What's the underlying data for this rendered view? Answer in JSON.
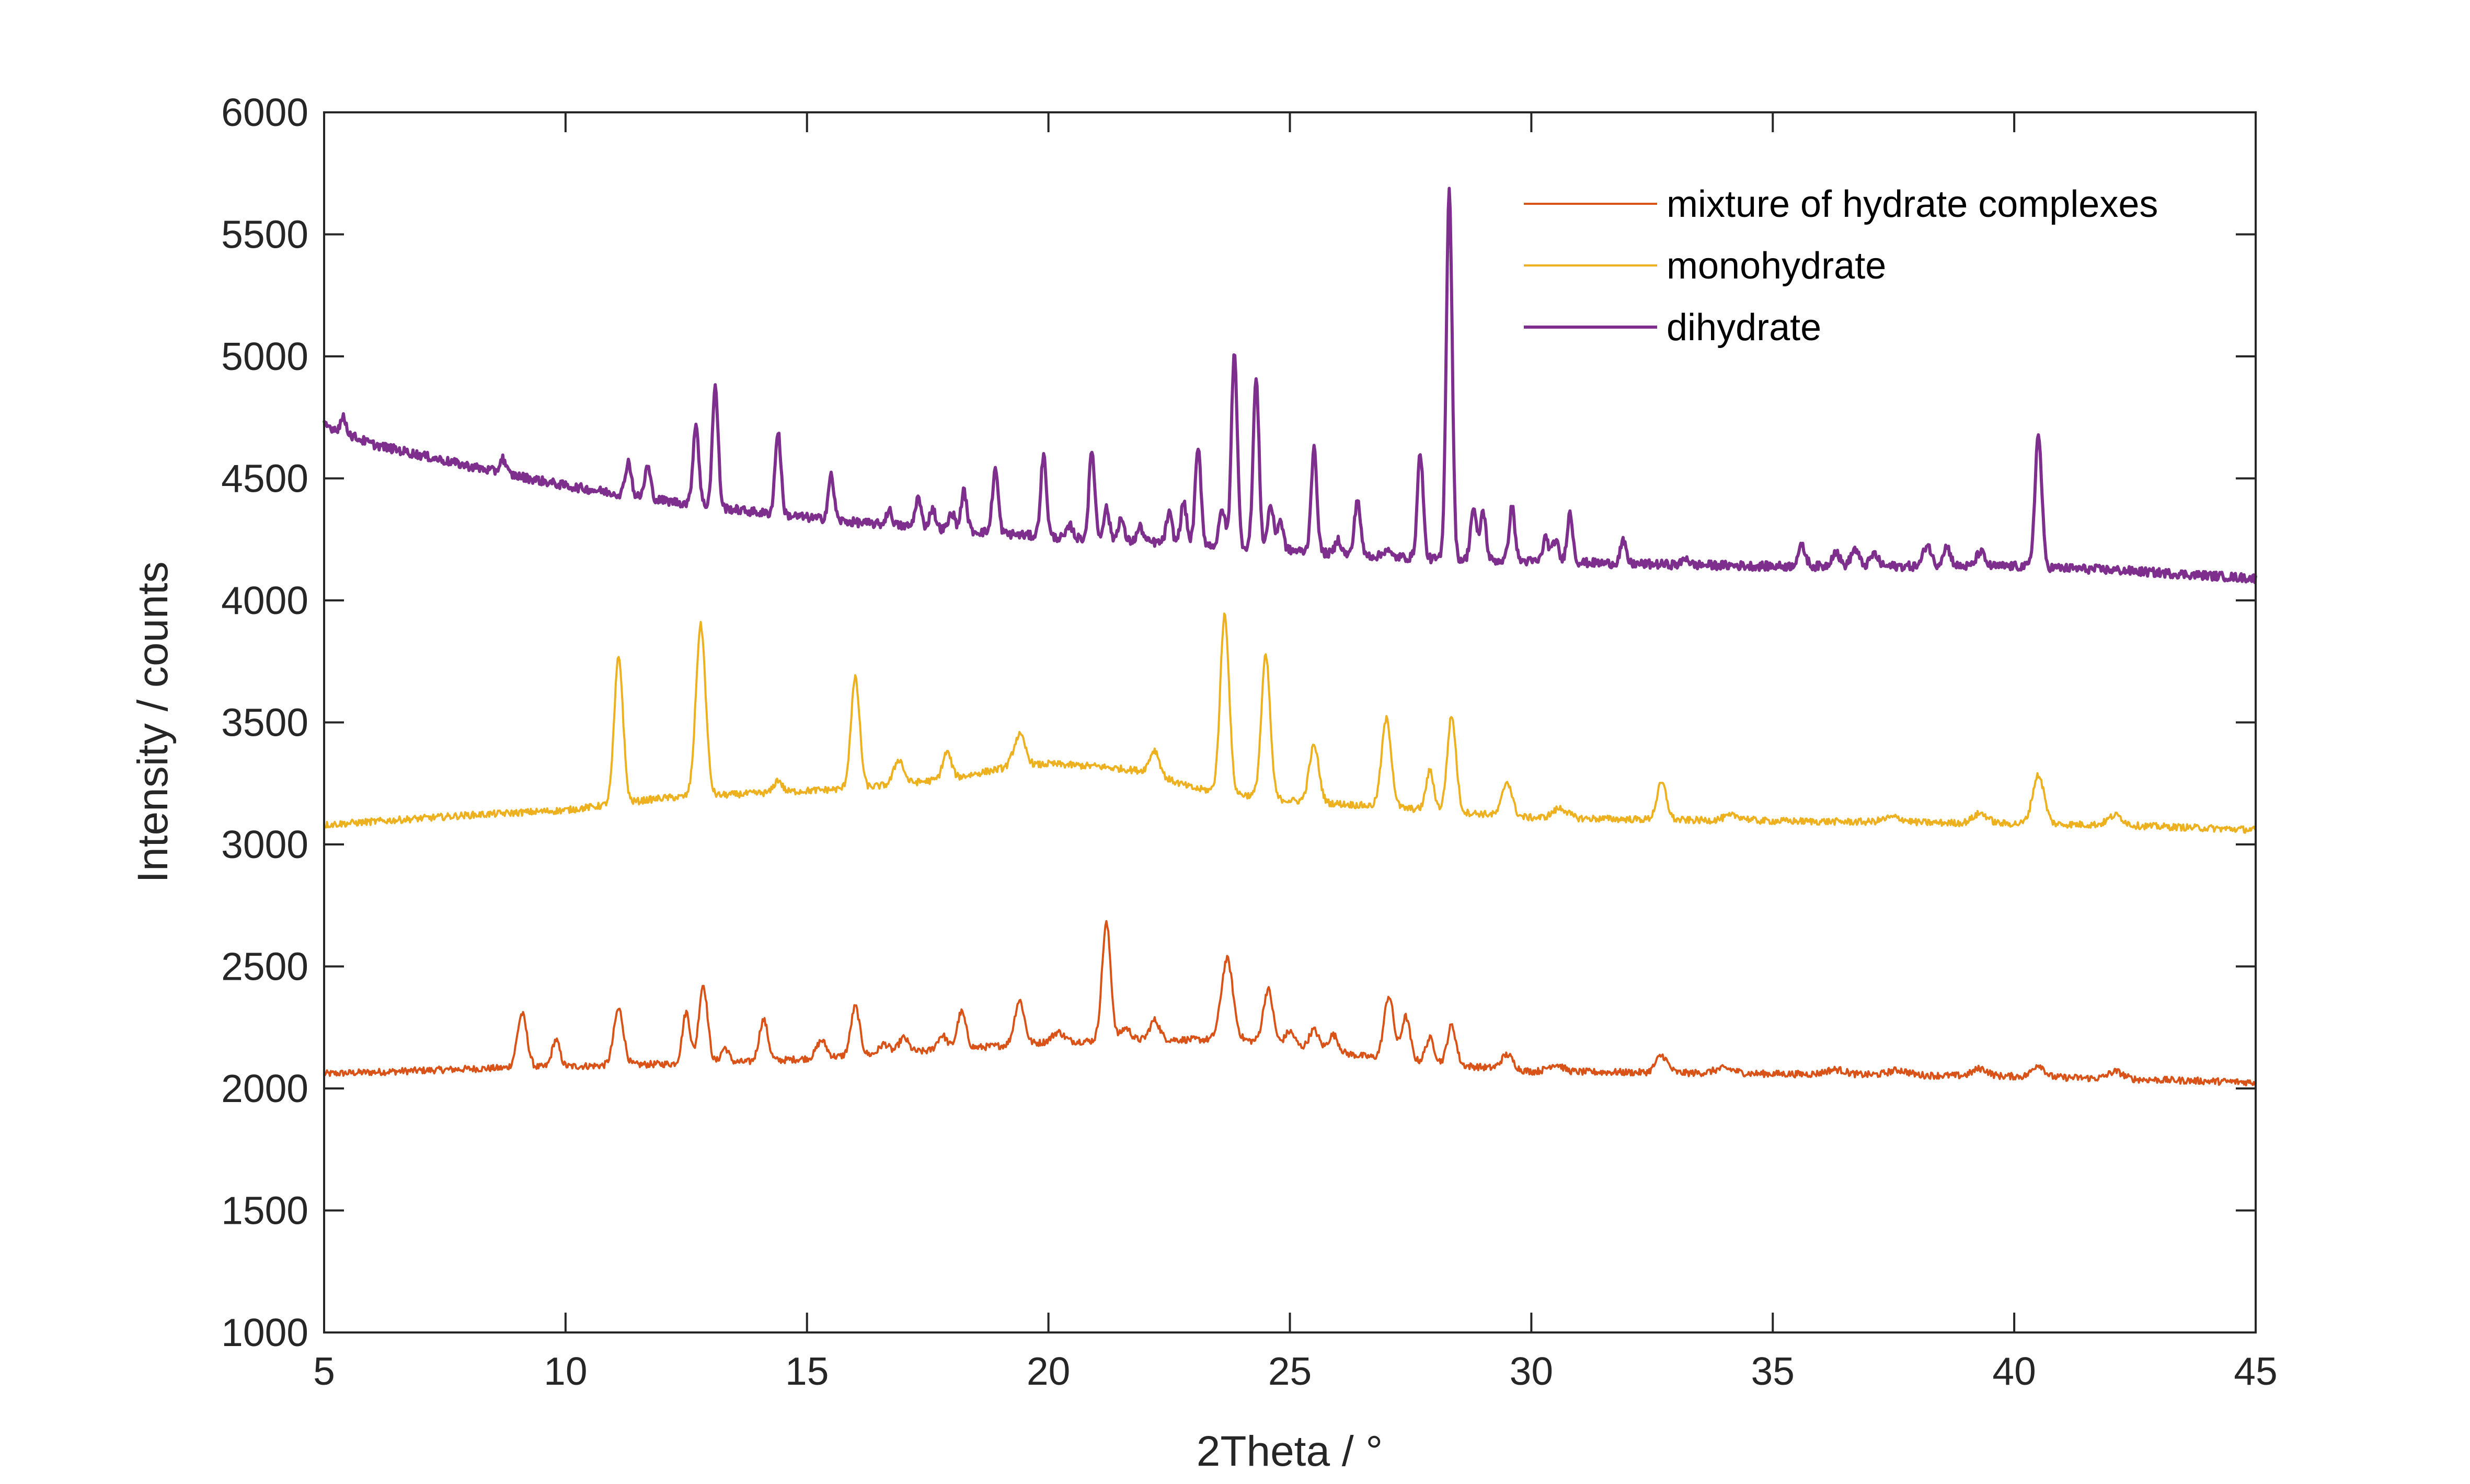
{
  "chart_data": {
    "type": "line",
    "title": "",
    "xlabel": "2Theta / °",
    "ylabel": "Intensity / counts",
    "xlim": [
      5,
      45
    ],
    "ylim": [
      1000,
      6000
    ],
    "xticks": [
      5,
      10,
      15,
      20,
      25,
      30,
      35,
      40,
      45
    ],
    "yticks": [
      1000,
      1500,
      2000,
      2500,
      3000,
      3500,
      4000,
      4500,
      5000,
      5500,
      6000
    ],
    "grid": false,
    "legend_position": "top-right",
    "series": [
      {
        "name": "mixture of hydrate complexes",
        "color": "#D95319",
        "baseline": [
          [
            5,
            2060
          ],
          [
            8,
            2080
          ],
          [
            10,
            2090
          ],
          [
            14,
            2110
          ],
          [
            18,
            2160
          ],
          [
            20,
            2190
          ],
          [
            22,
            2200
          ],
          [
            24,
            2200
          ],
          [
            27,
            2120
          ],
          [
            30,
            2070
          ],
          [
            35,
            2060
          ],
          [
            40,
            2050
          ],
          [
            45,
            2025
          ]
        ],
        "peaks": [
          [
            9.1,
            220,
            0.1
          ],
          [
            9.8,
            110,
            0.08
          ],
          [
            11.1,
            230,
            0.1
          ],
          [
            12.5,
            210,
            0.08
          ],
          [
            12.85,
            320,
            0.09
          ],
          [
            13.3,
            60,
            0.08
          ],
          [
            14.1,
            170,
            0.09
          ],
          [
            15.3,
            70,
            0.1
          ],
          [
            16.0,
            200,
            0.09
          ],
          [
            16.6,
            40,
            0.1
          ],
          [
            17.0,
            60,
            0.1
          ],
          [
            17.8,
            60,
            0.1
          ],
          [
            18.2,
            150,
            0.09
          ],
          [
            19.4,
            180,
            0.1
          ],
          [
            20.2,
            40,
            0.12
          ],
          [
            21.2,
            480,
            0.09
          ],
          [
            21.6,
            50,
            0.1
          ],
          [
            22.2,
            80,
            0.1
          ],
          [
            23.7,
            330,
            0.12
          ],
          [
            24.55,
            220,
            0.1
          ],
          [
            25.0,
            60,
            0.1
          ],
          [
            25.5,
            80,
            0.1
          ],
          [
            25.9,
            70,
            0.1
          ],
          [
            27.05,
            260,
            0.1
          ],
          [
            27.4,
            180,
            0.09
          ],
          [
            27.9,
            100,
            0.09
          ],
          [
            28.35,
            160,
            0.09
          ],
          [
            29.5,
            60,
            0.12
          ],
          [
            30.5,
            30,
            0.15
          ],
          [
            32.7,
            70,
            0.12
          ],
          [
            34.0,
            20,
            0.2
          ],
          [
            36.3,
            20,
            0.2
          ],
          [
            37.6,
            20,
            0.2
          ],
          [
            39.3,
            30,
            0.15
          ],
          [
            40.5,
            50,
            0.12
          ],
          [
            42.1,
            30,
            0.15
          ]
        ]
      },
      {
        "name": "monohydrate",
        "color": "#EDB120",
        "baseline": [
          [
            5,
            3080
          ],
          [
            8,
            3120
          ],
          [
            10,
            3140
          ],
          [
            12,
            3190
          ],
          [
            14,
            3210
          ],
          [
            16,
            3230
          ],
          [
            18,
            3270
          ],
          [
            19,
            3310
          ],
          [
            20,
            3330
          ],
          [
            21,
            3320
          ],
          [
            22,
            3300
          ],
          [
            23,
            3230
          ],
          [
            25,
            3180
          ],
          [
            28,
            3140
          ],
          [
            30,
            3110
          ],
          [
            33,
            3100
          ],
          [
            38,
            3090
          ],
          [
            42,
            3080
          ],
          [
            45,
            3060
          ]
        ],
        "peaks": [
          [
            11.1,
            600,
            0.09
          ],
          [
            12.8,
            700,
            0.1
          ],
          [
            14.4,
            50,
            0.08
          ],
          [
            16.0,
            450,
            0.09
          ],
          [
            16.9,
            100,
            0.1
          ],
          [
            17.9,
            110,
            0.09
          ],
          [
            19.4,
            130,
            0.12
          ],
          [
            22.2,
            100,
            0.1
          ],
          [
            23.65,
            730,
            0.09
          ],
          [
            24.5,
            580,
            0.09
          ],
          [
            25.5,
            230,
            0.1
          ],
          [
            27.0,
            360,
            0.1
          ],
          [
            27.9,
            160,
            0.08
          ],
          [
            28.35,
            390,
            0.09
          ],
          [
            29.5,
            140,
            0.1
          ],
          [
            30.6,
            40,
            0.15
          ],
          [
            32.7,
            150,
            0.1
          ],
          [
            34.2,
            20,
            0.2
          ],
          [
            37.5,
            20,
            0.2
          ],
          [
            39.3,
            40,
            0.15
          ],
          [
            40.5,
            200,
            0.12
          ],
          [
            42.1,
            40,
            0.15
          ]
        ]
      },
      {
        "name": "dihydrate",
        "color": "#7E2F8E",
        "baseline": [
          [
            5,
            4720
          ],
          [
            6,
            4640
          ],
          [
            8,
            4550
          ],
          [
            10,
            4470
          ],
          [
            12,
            4410
          ],
          [
            14,
            4360
          ],
          [
            16,
            4320
          ],
          [
            18,
            4290
          ],
          [
            20,
            4260
          ],
          [
            22,
            4240
          ],
          [
            24,
            4220
          ],
          [
            26,
            4190
          ],
          [
            28,
            4170
          ],
          [
            30,
            4160
          ],
          [
            32,
            4150
          ],
          [
            35,
            4140
          ],
          [
            38,
            4140
          ],
          [
            40,
            4140
          ],
          [
            42,
            4125
          ],
          [
            45,
            4090
          ]
        ],
        "peaks": [
          [
            5.4,
            60,
            0.06
          ],
          [
            8.7,
            60,
            0.06
          ],
          [
            11.3,
            140,
            0.06
          ],
          [
            11.7,
            130,
            0.06
          ],
          [
            12.7,
            330,
            0.06
          ],
          [
            13.1,
            490,
            0.06
          ],
          [
            14.4,
            340,
            0.06
          ],
          [
            15.5,
            180,
            0.06
          ],
          [
            16.7,
            60,
            0.06
          ],
          [
            17.3,
            120,
            0.06
          ],
          [
            17.6,
            80,
            0.06
          ],
          [
            18.0,
            70,
            0.06
          ],
          [
            18.25,
            160,
            0.06
          ],
          [
            18.9,
            260,
            0.06
          ],
          [
            19.9,
            330,
            0.06
          ],
          [
            20.45,
            50,
            0.06
          ],
          [
            20.9,
            360,
            0.06
          ],
          [
            21.2,
            130,
            0.06
          ],
          [
            21.5,
            90,
            0.06
          ],
          [
            21.9,
            60,
            0.06
          ],
          [
            22.5,
            120,
            0.06
          ],
          [
            22.8,
            170,
            0.06
          ],
          [
            23.1,
            390,
            0.06
          ],
          [
            23.6,
            150,
            0.06
          ],
          [
            23.85,
            800,
            0.06
          ],
          [
            24.3,
            690,
            0.06
          ],
          [
            24.6,
            180,
            0.06
          ],
          [
            24.8,
            120,
            0.06
          ],
          [
            25.5,
            420,
            0.06
          ],
          [
            26.0,
            60,
            0.06
          ],
          [
            26.4,
            230,
            0.06
          ],
          [
            27.0,
            30,
            0.06
          ],
          [
            27.7,
            430,
            0.06
          ],
          [
            28.3,
            1520,
            0.06
          ],
          [
            28.8,
            210,
            0.06
          ],
          [
            29.0,
            200,
            0.06
          ],
          [
            29.6,
            220,
            0.06
          ],
          [
            30.3,
            100,
            0.06
          ],
          [
            30.5,
            90,
            0.06
          ],
          [
            30.8,
            200,
            0.06
          ],
          [
            31.9,
            90,
            0.06
          ],
          [
            33.2,
            30,
            0.06
          ],
          [
            35.6,
            80,
            0.08
          ],
          [
            36.3,
            60,
            0.08
          ],
          [
            36.7,
            70,
            0.08
          ],
          [
            37.1,
            50,
            0.08
          ],
          [
            38.2,
            90,
            0.08
          ],
          [
            38.6,
            80,
            0.08
          ],
          [
            39.3,
            60,
            0.08
          ],
          [
            40.5,
            540,
            0.07
          ]
        ]
      }
    ]
  }
}
